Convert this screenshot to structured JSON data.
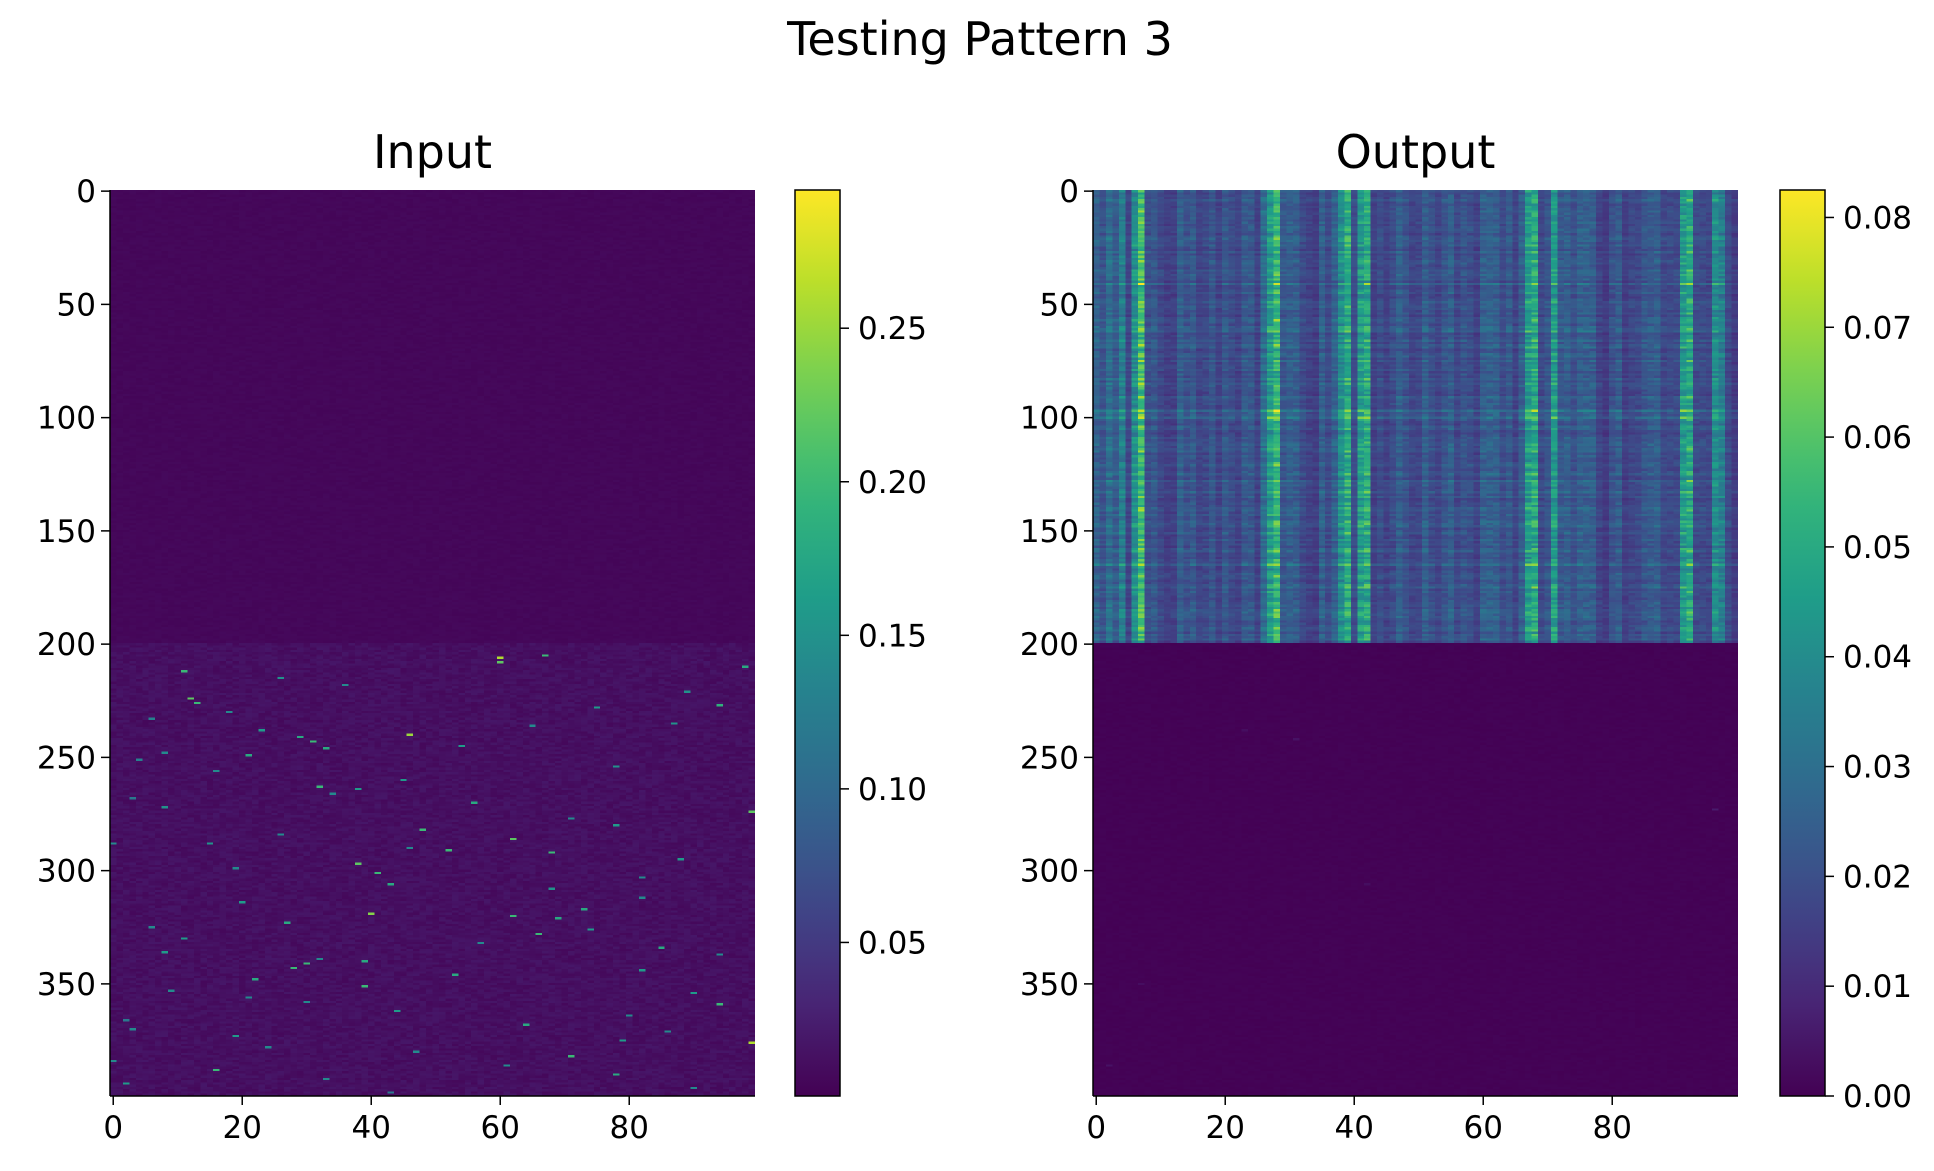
{
  "figure": {
    "suptitle": "Testing Pattern 3"
  },
  "chart_data": [
    {
      "type": "heatmap",
      "title": "Input",
      "xlabel": "",
      "ylabel": "",
      "rows": 400,
      "cols": 100,
      "x_ticks": [
        0,
        20,
        40,
        60,
        80
      ],
      "y_ticks": [
        0,
        50,
        100,
        150,
        200,
        250,
        300,
        350
      ],
      "colormap": "viridis",
      "color_range": [
        0.0,
        0.295
      ],
      "colorbar_ticks": [
        0.05,
        0.1,
        0.15,
        0.2,
        0.25
      ],
      "colorbar_tick_labels": [
        "0.05",
        "0.10",
        "0.15",
        "0.20",
        "0.25"
      ],
      "regions": [
        {
          "rows": [
            0,
            199
          ],
          "description_value": "near-constant background",
          "approx_value": 0.005
        },
        {
          "rows": [
            200,
            399
          ],
          "background_value": 0.012,
          "sparse_spikes": [
            [
              206,
              60,
              0.26
            ],
            [
              208,
              60,
              0.22
            ],
            [
              205,
              67,
              0.2
            ],
            [
              210,
              98,
              0.18
            ],
            [
              212,
              11,
              0.2
            ],
            [
              215,
              26,
              0.15
            ],
            [
              218,
              36,
              0.14
            ],
            [
              221,
              89,
              0.15
            ],
            [
              224,
              12,
              0.22
            ],
            [
              226,
              13,
              0.2
            ],
            [
              227,
              94,
              0.19
            ],
            [
              228,
              75,
              0.16
            ],
            [
              230,
              18,
              0.14
            ],
            [
              233,
              6,
              0.13
            ],
            [
              235,
              87,
              0.15
            ],
            [
              236,
              65,
              0.14
            ],
            [
              238,
              23,
              0.16
            ],
            [
              240,
              46,
              0.25
            ],
            [
              241,
              29,
              0.18
            ],
            [
              243,
              31,
              0.2
            ],
            [
              245,
              54,
              0.16
            ],
            [
              246,
              33,
              0.18
            ],
            [
              248,
              8,
              0.14
            ],
            [
              249,
              21,
              0.18
            ],
            [
              251,
              4,
              0.13
            ],
            [
              254,
              78,
              0.15
            ],
            [
              256,
              16,
              0.14
            ],
            [
              260,
              45,
              0.16
            ],
            [
              263,
              32,
              0.2
            ],
            [
              264,
              38,
              0.16
            ],
            [
              266,
              34,
              0.14
            ],
            [
              268,
              3,
              0.12
            ],
            [
              270,
              56,
              0.18
            ],
            [
              272,
              8,
              0.15
            ],
            [
              274,
              99,
              0.22
            ],
            [
              277,
              71,
              0.14
            ],
            [
              280,
              78,
              0.16
            ],
            [
              282,
              48,
              0.2
            ],
            [
              284,
              26,
              0.14
            ],
            [
              286,
              62,
              0.22
            ],
            [
              288,
              0,
              0.14
            ],
            [
              288,
              15,
              0.15
            ],
            [
              290,
              46,
              0.14
            ],
            [
              291,
              52,
              0.2
            ],
            [
              292,
              68,
              0.2
            ],
            [
              295,
              88,
              0.16
            ],
            [
              297,
              38,
              0.22
            ],
            [
              299,
              19,
              0.14
            ],
            [
              301,
              41,
              0.2
            ],
            [
              303,
              82,
              0.14
            ],
            [
              306,
              43,
              0.18
            ],
            [
              308,
              68,
              0.15
            ],
            [
              312,
              82,
              0.14
            ],
            [
              314,
              20,
              0.16
            ],
            [
              317,
              73,
              0.18
            ],
            [
              319,
              40,
              0.24
            ],
            [
              320,
              62,
              0.2
            ],
            [
              321,
              69,
              0.18
            ],
            [
              323,
              27,
              0.18
            ],
            [
              325,
              6,
              0.14
            ],
            [
              326,
              74,
              0.16
            ],
            [
              328,
              66,
              0.2
            ],
            [
              330,
              11,
              0.16
            ],
            [
              332,
              57,
              0.14
            ],
            [
              334,
              85,
              0.18
            ],
            [
              336,
              8,
              0.16
            ],
            [
              337,
              94,
              0.14
            ],
            [
              339,
              32,
              0.14
            ],
            [
              340,
              39,
              0.18
            ],
            [
              341,
              30,
              0.2
            ],
            [
              343,
              28,
              0.2
            ],
            [
              344,
              82,
              0.16
            ],
            [
              346,
              53,
              0.18
            ],
            [
              348,
              22,
              0.18
            ],
            [
              351,
              39,
              0.2
            ],
            [
              353,
              9,
              0.14
            ],
            [
              354,
              90,
              0.16
            ],
            [
              356,
              21,
              0.14
            ],
            [
              358,
              30,
              0.14
            ],
            [
              359,
              94,
              0.2
            ],
            [
              362,
              44,
              0.16
            ],
            [
              364,
              80,
              0.14
            ],
            [
              366,
              2,
              0.12
            ],
            [
              368,
              64,
              0.18
            ],
            [
              370,
              3,
              0.14
            ],
            [
              371,
              86,
              0.14
            ],
            [
              373,
              19,
              0.16
            ],
            [
              375,
              79,
              0.16
            ],
            [
              376,
              99,
              0.26
            ],
            [
              378,
              24,
              0.14
            ],
            [
              380,
              47,
              0.14
            ],
            [
              382,
              71,
              0.2
            ],
            [
              384,
              0,
              0.14
            ],
            [
              386,
              61,
              0.14
            ],
            [
              388,
              16,
              0.2
            ],
            [
              390,
              78,
              0.18
            ],
            [
              392,
              33,
              0.14
            ],
            [
              394,
              2,
              0.16
            ],
            [
              396,
              90,
              0.14
            ],
            [
              398,
              43,
              0.12
            ]
          ]
        }
      ]
    },
    {
      "type": "heatmap",
      "title": "Output",
      "xlabel": "",
      "ylabel": "",
      "rows": 400,
      "cols": 100,
      "x_ticks": [
        0,
        20,
        40,
        60,
        80
      ],
      "y_ticks": [
        0,
        50,
        100,
        150,
        200,
        250,
        300,
        350
      ],
      "colormap": "viridis",
      "color_range": [
        0.0,
        0.0825
      ],
      "colorbar_ticks": [
        0.0,
        0.01,
        0.02,
        0.03,
        0.04,
        0.05,
        0.06,
        0.07,
        0.08
      ],
      "colorbar_tick_labels": [
        "0.00",
        "0.01",
        "0.02",
        "0.03",
        "0.04",
        "0.05",
        "0.06",
        "0.07",
        "0.08"
      ],
      "regions": [
        {
          "rows": [
            0,
            199
          ],
          "background_value": 0.014,
          "bright_columns": [
            [
              2,
              0.03
            ],
            [
              4,
              0.035
            ],
            [
              6,
              0.04
            ],
            [
              7,
              0.058
            ],
            [
              13,
              0.025
            ],
            [
              18,
              0.022
            ],
            [
              26,
              0.03
            ],
            [
              27,
              0.045
            ],
            [
              28,
              0.055
            ],
            [
              35,
              0.025
            ],
            [
              38,
              0.04
            ],
            [
              39,
              0.05
            ],
            [
              41,
              0.045
            ],
            [
              42,
              0.05
            ],
            [
              47,
              0.025
            ],
            [
              55,
              0.025
            ],
            [
              58,
              0.02
            ],
            [
              62,
              0.025
            ],
            [
              67,
              0.045
            ],
            [
              68,
              0.05
            ],
            [
              71,
              0.045
            ],
            [
              75,
              0.025
            ],
            [
              85,
              0.022
            ],
            [
              91,
              0.045
            ],
            [
              92,
              0.05
            ],
            [
              96,
              0.04
            ],
            [
              97,
              0.035
            ]
          ],
          "bright_rows": [
            [
              41,
              1.3
            ],
            [
              62,
              1.25
            ],
            [
              97,
              1.4
            ],
            [
              100,
              1.35
            ],
            [
              128,
              1.2
            ],
            [
              165,
              1.3
            ],
            [
              175,
              1.2
            ]
          ]
        },
        {
          "rows": [
            200,
            399
          ],
          "approx_value": 0.0,
          "faint_spots": [
            [
              238,
              23,
              0.003
            ],
            [
              242,
              31,
              0.004
            ],
            [
              273,
              96,
              0.006
            ],
            [
              386,
              2,
              0.004
            ],
            [
              350,
              7,
              0.003
            ],
            [
              306,
              42,
              0.003
            ]
          ]
        }
      ]
    }
  ]
}
